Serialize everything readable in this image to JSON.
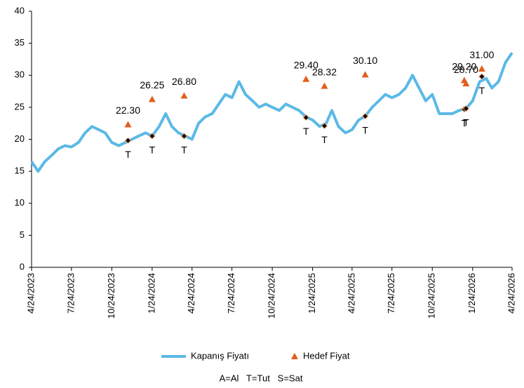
{
  "chart_data": {
    "type": "line",
    "xlim": [
      "2023-04-24",
      "2026-04-24"
    ],
    "xticks": [
      {
        "value": "2023-04-24",
        "label": "4/24/2023"
      },
      {
        "value": "2023-07-24",
        "label": "7/24/2023"
      },
      {
        "value": "2023-10-24",
        "label": "10/24/2023"
      },
      {
        "value": "2024-01-24",
        "label": "1/24/2024"
      },
      {
        "value": "2024-04-24",
        "label": "4/24/2024"
      },
      {
        "value": "2024-07-24",
        "label": "7/24/2024"
      },
      {
        "value": "2024-10-24",
        "label": "10/24/2024"
      },
      {
        "value": "2025-01-24",
        "label": "1/24/2025"
      },
      {
        "value": "2025-04-24",
        "label": "4/24/2025"
      },
      {
        "value": "2025-07-24",
        "label": "7/24/2025"
      },
      {
        "value": "2025-10-24",
        "label": "10/24/2025"
      },
      {
        "value": "2026-01-24",
        "label": "1/24/2026"
      },
      {
        "value": "2026-04-24",
        "label": "4/24/2026"
      }
    ],
    "ylim": [
      0,
      40
    ],
    "yticks": [
      0,
      5,
      10,
      15,
      20,
      25,
      30,
      35,
      40
    ],
    "grid": false,
    "series": [
      {
        "name": "Kapanış Fiyatı",
        "color": "#5bb9e6",
        "type": "line",
        "x": [
          "2023-04-24",
          "2023-05-09",
          "2023-05-24",
          "2023-06-09",
          "2023-06-24",
          "2023-07-09",
          "2023-07-24",
          "2023-08-09",
          "2023-08-24",
          "2023-09-09",
          "2023-09-24",
          "2023-10-09",
          "2023-10-24",
          "2023-11-09",
          "2023-11-24",
          "2023-12-09",
          "2023-12-24",
          "2024-01-09",
          "2024-01-24",
          "2024-02-09",
          "2024-02-24",
          "2024-03-09",
          "2024-03-24",
          "2024-04-09",
          "2024-04-24",
          "2024-05-09",
          "2024-05-24",
          "2024-06-09",
          "2024-06-24",
          "2024-07-09",
          "2024-07-24",
          "2024-08-09",
          "2024-08-24",
          "2024-09-09",
          "2024-09-24",
          "2024-10-09",
          "2024-10-24",
          "2024-11-09",
          "2024-11-24",
          "2024-12-09",
          "2024-12-24",
          "2025-01-09",
          "2025-01-24",
          "2025-02-09",
          "2025-02-24",
          "2025-03-09",
          "2025-03-24",
          "2025-04-09",
          "2025-04-24",
          "2025-05-09",
          "2025-05-24",
          "2025-06-09",
          "2025-06-24",
          "2025-07-09",
          "2025-07-24",
          "2025-08-09",
          "2025-08-24",
          "2025-09-09",
          "2025-09-24",
          "2025-10-09",
          "2025-10-24",
          "2025-11-09",
          "2025-11-24",
          "2025-12-09",
          "2025-12-24",
          "2026-01-09",
          "2026-01-24",
          "2026-02-09",
          "2026-02-24",
          "2026-03-09",
          "2026-03-24",
          "2026-04-09",
          "2026-04-24"
        ],
        "values": [
          16.5,
          15.0,
          16.5,
          17.5,
          18.5,
          19.0,
          18.8,
          19.5,
          21.0,
          22.0,
          21.5,
          21.0,
          19.5,
          19.0,
          19.5,
          20.0,
          20.5,
          21.0,
          20.5,
          22.0,
          24.0,
          22.0,
          21.0,
          20.5,
          20.0,
          22.5,
          23.5,
          24.0,
          25.5,
          27.0,
          26.5,
          29.0,
          27.0,
          26.0,
          25.0,
          25.5,
          25.0,
          24.5,
          25.5,
          25.0,
          24.5,
          23.5,
          23.0,
          22.0,
          22.5,
          24.5,
          22.0,
          21.0,
          21.5,
          23.0,
          23.6,
          25.0,
          26.0,
          27.0,
          26.5,
          27.0,
          28.0,
          30.0,
          28.0,
          26.0,
          27.0,
          24.0,
          24.0,
          24.0,
          24.5,
          24.8,
          26.0,
          29.0,
          29.5,
          28.0,
          29.0,
          32.0,
          33.5
        ]
      },
      {
        "name": "Hedef Fiyat",
        "color": "#e35d1c",
        "type": "scatter",
        "x": [
          "2023-11-30",
          "2024-01-24",
          "2024-04-06",
          "2025-01-09",
          "2025-02-20",
          "2025-05-24",
          "2026-01-05",
          "2026-01-09",
          "2026-02-14"
        ],
        "values": [
          22.3,
          26.25,
          26.8,
          29.4,
          28.32,
          30.1,
          29.2,
          28.7,
          31.0
        ],
        "value_labels": [
          "22.30",
          "26.25",
          "26.80",
          "29.40",
          "28.32",
          "30.10",
          "29.20",
          "28.70",
          "31.00"
        ]
      }
    ],
    "recommendations": {
      "x": [
        "2023-11-30",
        "2024-01-24",
        "2024-04-06",
        "2025-01-09",
        "2025-02-20",
        "2025-05-24",
        "2026-01-05",
        "2026-01-09",
        "2026-02-14"
      ],
      "values": [
        19.8,
        20.5,
        20.5,
        23.4,
        22.1,
        23.6,
        24.7,
        24.8,
        29.8
      ],
      "labels": [
        "T",
        "T",
        "T",
        "T",
        "T",
        "T",
        "T",
        "T",
        "T"
      ]
    },
    "note": "A=Al   T=Tut   S=Sat"
  }
}
